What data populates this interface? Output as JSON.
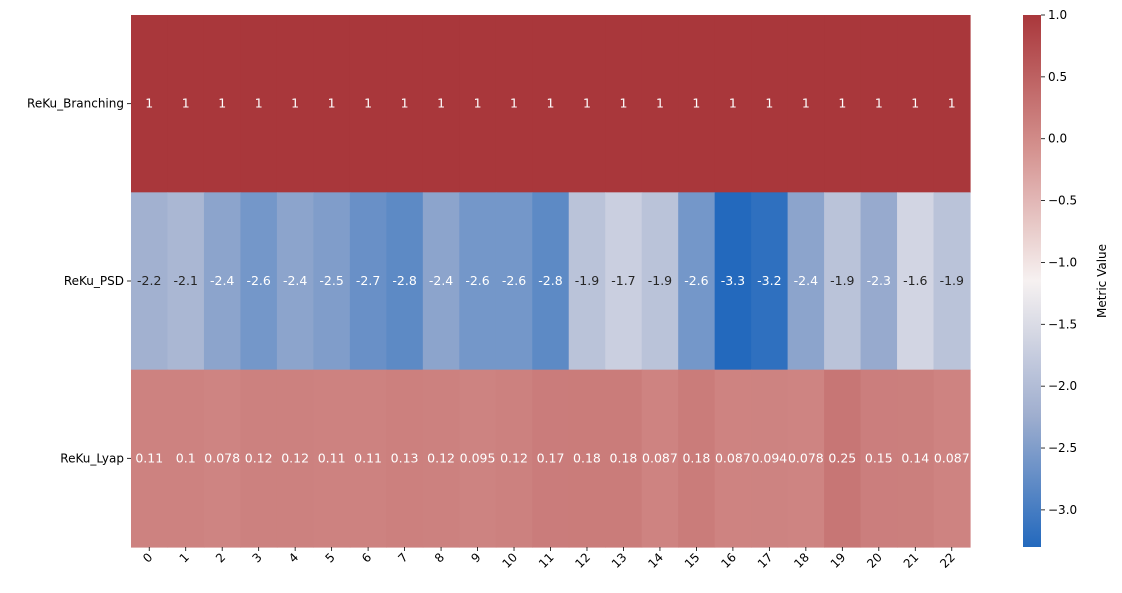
{
  "chart_data": {
    "type": "heatmap",
    "title": "",
    "xlabel": "",
    "ylabel": "",
    "columns": [
      "0",
      "1",
      "2",
      "3",
      "4",
      "5",
      "6",
      "7",
      "8",
      "9",
      "10",
      "11",
      "12",
      "13",
      "14",
      "15",
      "16",
      "17",
      "18",
      "19",
      "20",
      "21",
      "22"
    ],
    "rows": [
      {
        "name": "ReKu_Branching",
        "values": [
          1,
          1,
          1,
          1,
          1,
          1,
          1,
          1,
          1,
          1,
          1,
          1,
          1,
          1,
          1,
          1,
          1,
          1,
          1,
          1,
          1,
          1,
          1
        ],
        "labels": [
          "1",
          "1",
          "1",
          "1",
          "1",
          "1",
          "1",
          "1",
          "1",
          "1",
          "1",
          "1",
          "1",
          "1",
          "1",
          "1",
          "1",
          "1",
          "1",
          "1",
          "1",
          "1",
          "1"
        ]
      },
      {
        "name": "ReKu_PSD",
        "values": [
          -2.2,
          -2.1,
          -2.4,
          -2.6,
          -2.4,
          -2.5,
          -2.7,
          -2.8,
          -2.4,
          -2.6,
          -2.6,
          -2.8,
          -1.9,
          -1.7,
          -1.9,
          -2.6,
          -3.3,
          -3.2,
          -2.4,
          -1.9,
          -2.3,
          -1.6,
          -1.9
        ],
        "labels": [
          "-2.2",
          "-2.1",
          "-2.4",
          "-2.6",
          "-2.4",
          "-2.5",
          "-2.7",
          "-2.8",
          "-2.4",
          "-2.6",
          "-2.6",
          "-2.8",
          "-1.9",
          "-1.7",
          "-1.9",
          "-2.6",
          "-3.3",
          "-3.2",
          "-2.4",
          "-1.9",
          "-2.3",
          "-1.6",
          "-1.9"
        ]
      },
      {
        "name": "ReKu_Lyap",
        "values": [
          0.11,
          0.1,
          0.078,
          0.12,
          0.12,
          0.11,
          0.11,
          0.13,
          0.12,
          0.095,
          0.12,
          0.17,
          0.18,
          0.18,
          0.087,
          0.18,
          0.087,
          0.094,
          0.078,
          0.25,
          0.15,
          0.14,
          0.087
        ],
        "labels": [
          "0.11",
          "0.1",
          "0.078",
          "0.12",
          "0.12",
          "0.11",
          "0.11",
          "0.13",
          "0.12",
          "0.095",
          "0.12",
          "0.17",
          "0.18",
          "0.18",
          "0.087",
          "0.18",
          "0.087",
          "0.094",
          "0.078",
          "0.25",
          "0.15",
          "0.14",
          "0.087"
        ]
      }
    ],
    "colorbar": {
      "label": "Metric Value",
      "range": [
        -3.3,
        1.0
      ],
      "ticks": [
        "1.0",
        "0.5",
        "0.0",
        "−0.5",
        "−1.0",
        "−1.5",
        "−2.0",
        "−2.5",
        "−3.0"
      ],
      "tick_values": [
        1.0,
        0.5,
        0.0,
        -0.5,
        -1.0,
        -1.5,
        -2.0,
        -2.5,
        -3.0
      ],
      "colormap": [
        "#2369bd",
        "#a0afcf",
        "#f6f1f1",
        "#d4918e",
        "#a9373b"
      ]
    },
    "grid": false
  }
}
